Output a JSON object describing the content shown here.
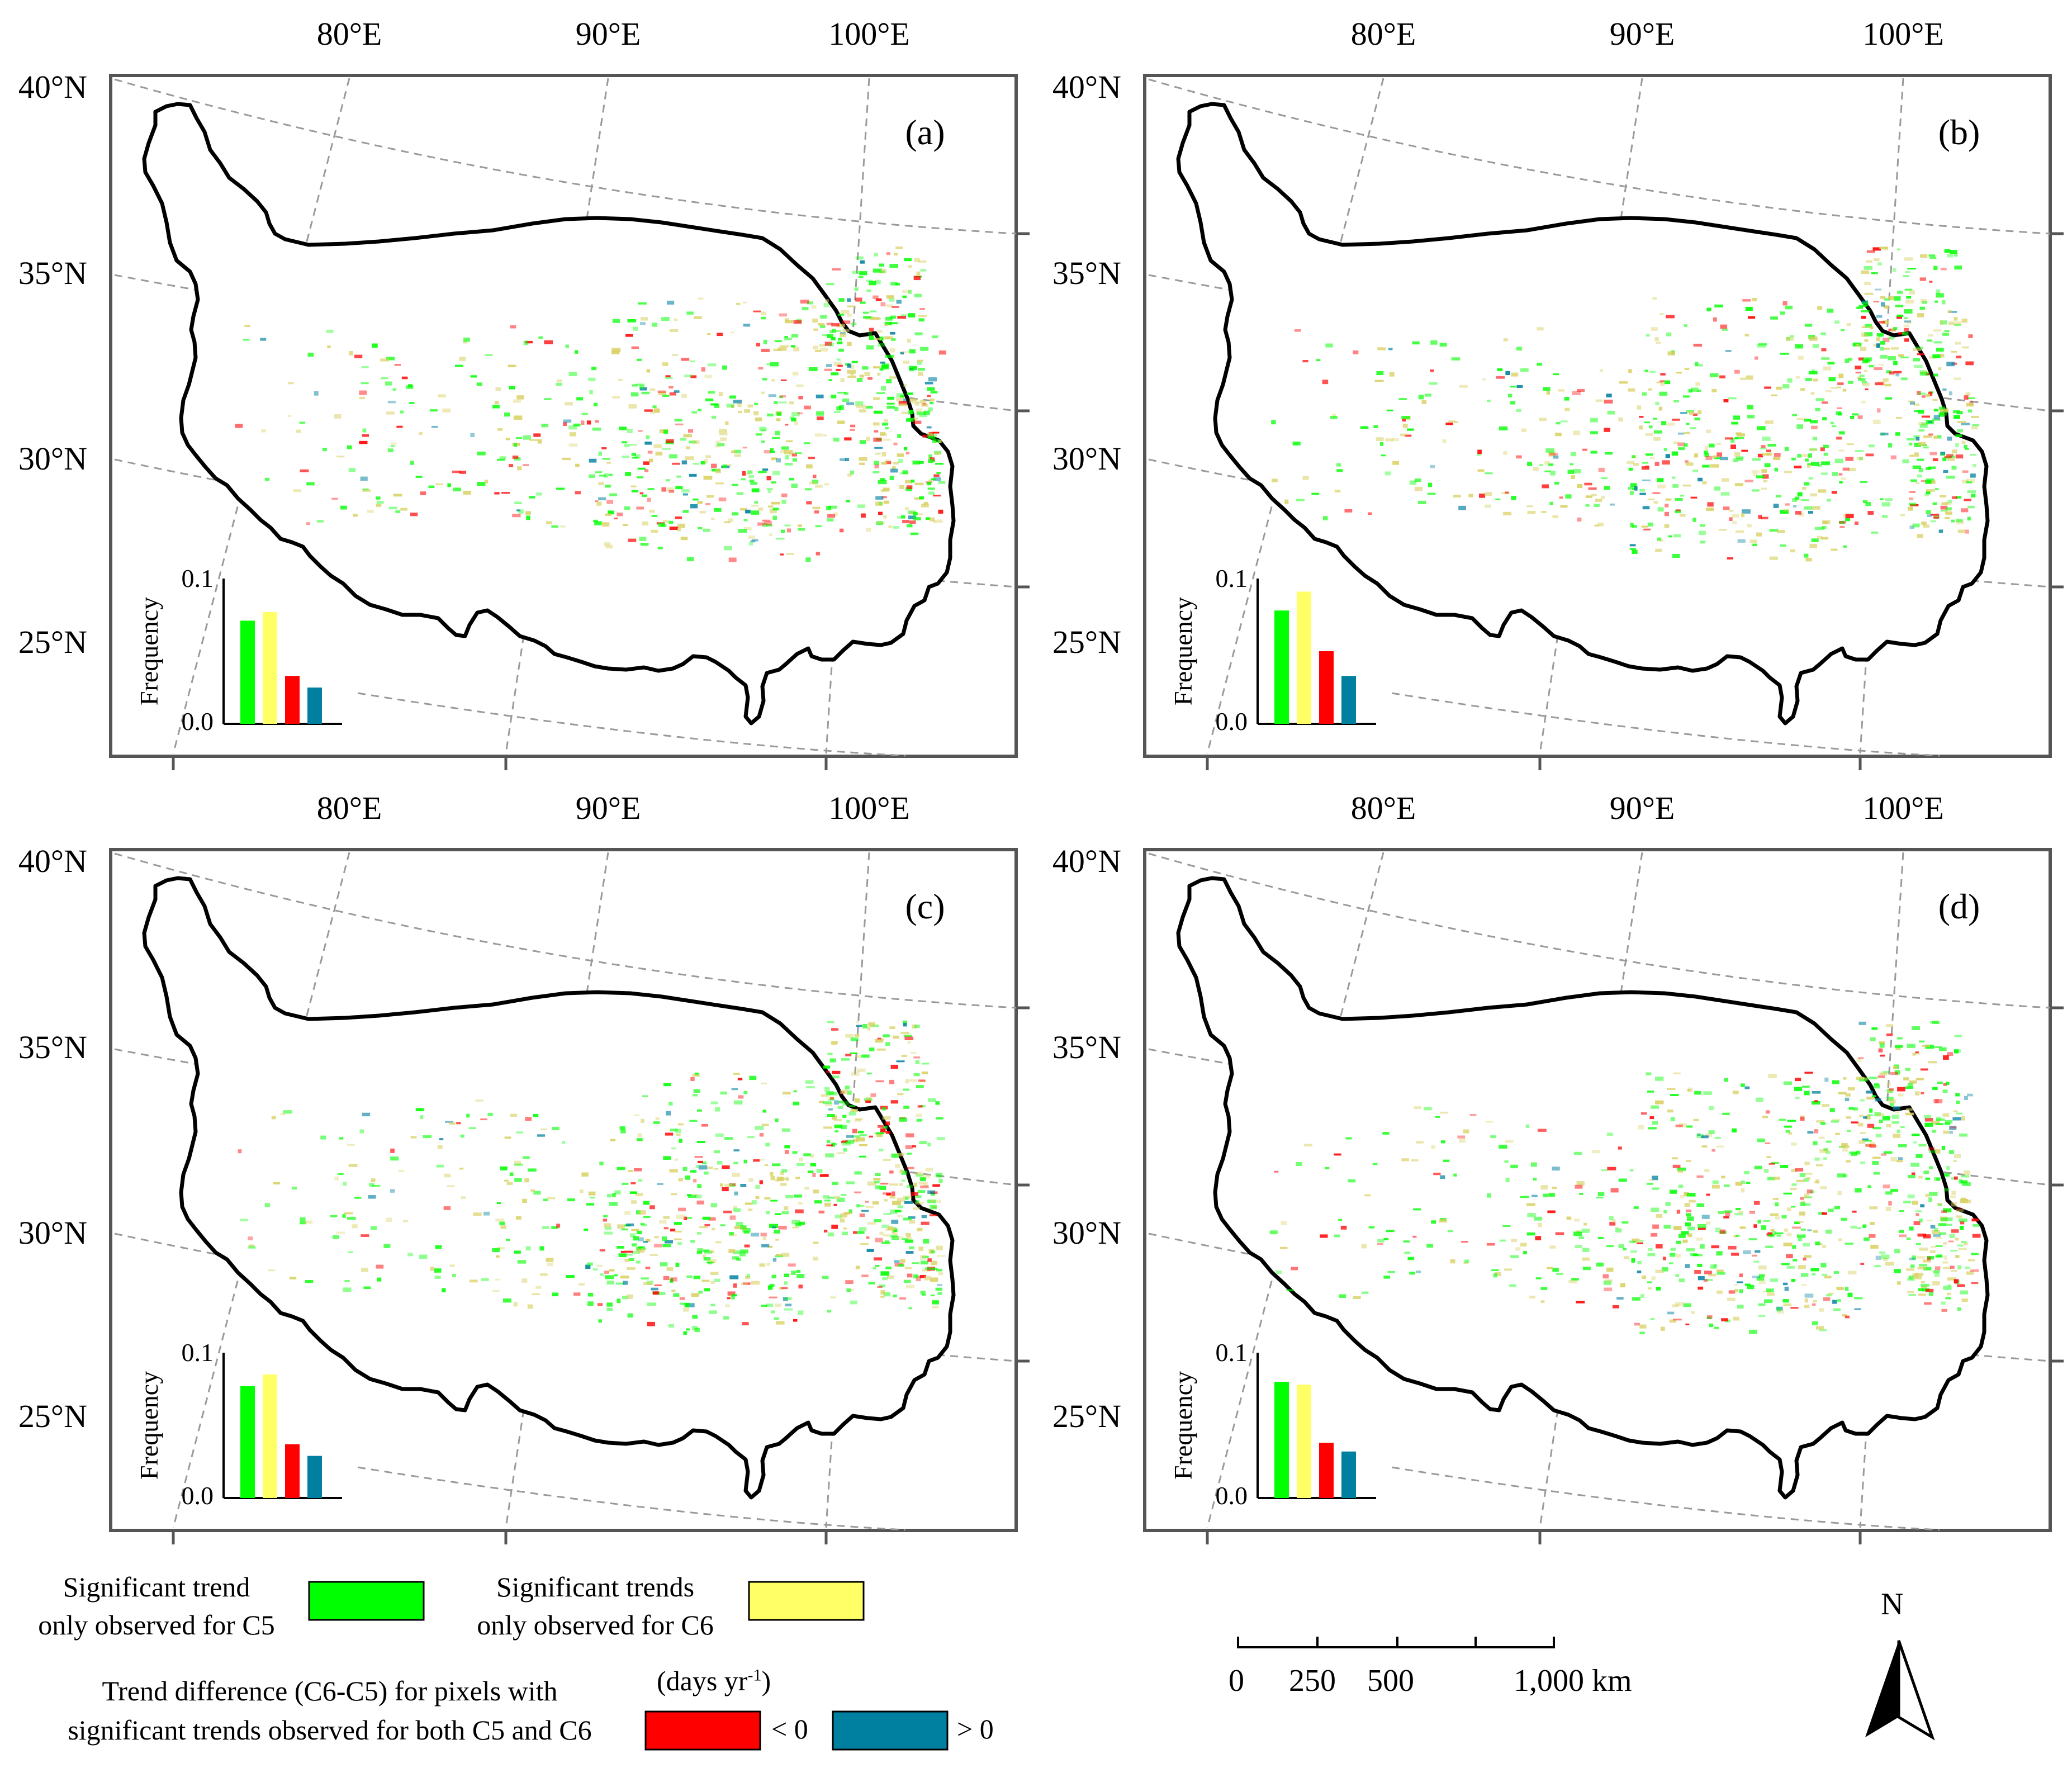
{
  "panels": [
    {
      "label": "(a)",
      "histogram": [
        0.071,
        0.077,
        0.033,
        0.025
      ]
    },
    {
      "label": "(b)",
      "histogram": [
        0.078,
        0.091,
        0.05,
        0.033
      ]
    },
    {
      "label": "(c)",
      "histogram": [
        0.077,
        0.085,
        0.037,
        0.029
      ]
    },
    {
      "label": "(d)",
      "histogram": [
        0.08,
        0.078,
        0.038,
        0.032
      ]
    }
  ],
  "map_labels": {
    "lon": [
      "80°E",
      "90°E",
      "100°E"
    ],
    "lat": [
      "40°N",
      "35°N",
      "30°N",
      "25°N"
    ]
  },
  "histogram_axis": {
    "ylabel": "Frequency",
    "ymax_label": "0.1",
    "ymin_label": "0.0",
    "ylim": [
      0,
      0.1
    ]
  },
  "legend": {
    "c5_only": {
      "line1": "Significant trend",
      "line2": "only observed for C5",
      "color": "#00ff00"
    },
    "c6_only": {
      "line1": "Significant trends",
      "line2": "only observed for C6",
      "color": "#ffff66"
    },
    "diff_title_line1": "Trend difference (C6-C5) for pixels with",
    "diff_title_line2": "significant trends observed for both C5 and C6",
    "units_base": "(days yr",
    "units_sup": "-1",
    "units_close": ")",
    "neg": {
      "label": "< 0",
      "color": "#ff0000"
    },
    "pos": {
      "label": "> 0",
      "color": "#0080a0"
    }
  },
  "scalebar": {
    "labels": [
      "0",
      "250",
      "500",
      "1,000"
    ],
    "unit": "km"
  },
  "north_arrow": {
    "label": "N"
  },
  "colors": {
    "green": "#00ff00",
    "yellow": "#ffff66",
    "red": "#ff0000",
    "blue": "#0080a0"
  }
}
